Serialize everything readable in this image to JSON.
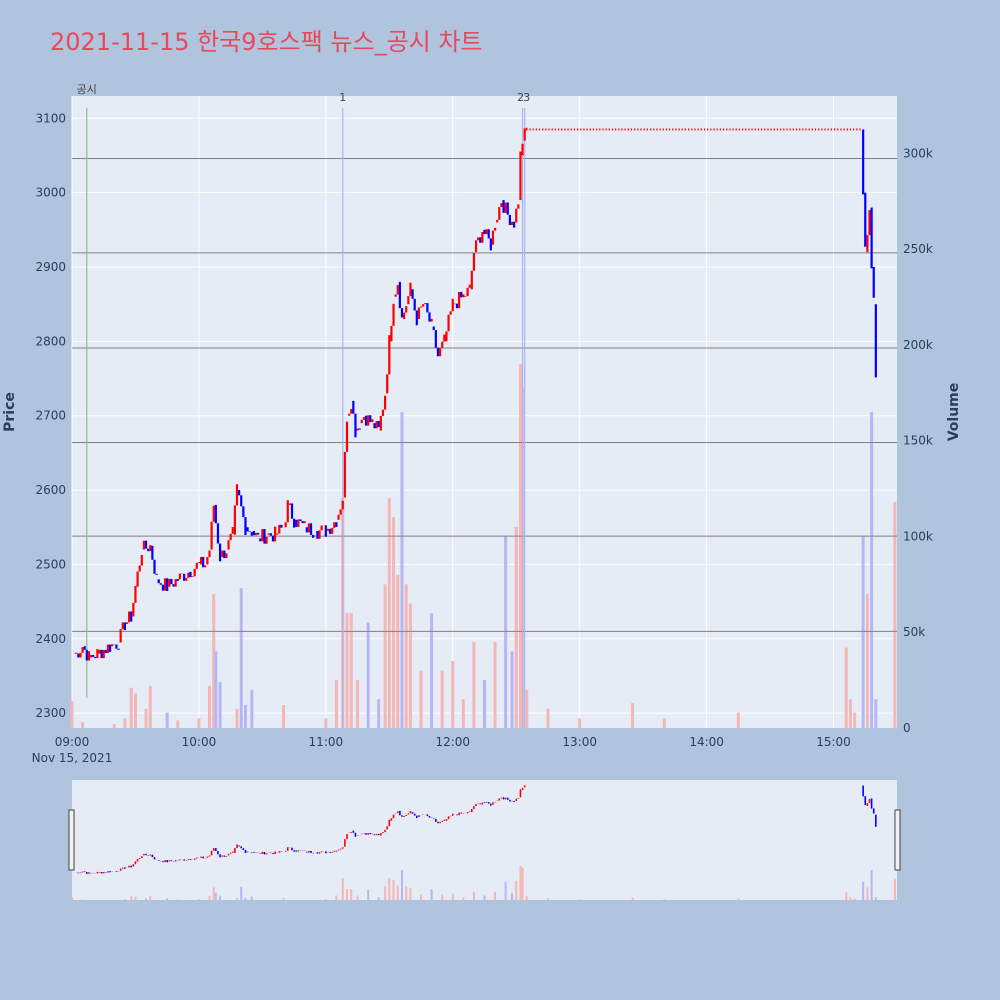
{
  "title": "2021-11-15 한국9호스팩 뉴스_공시 차트",
  "colors": {
    "page_bg": "#b0c4de",
    "plot_bg": "#e5ecf6",
    "title": "#e8495c",
    "up": "#ff0000",
    "down": "#0000ff",
    "vol_up": "#f4b6b6",
    "vol_down": "#b6b6f4",
    "disclosure_line": "#8fbc8f",
    "news_line": "#aab4f0",
    "hline": "#808080"
  },
  "chart_data": {
    "type": "candlestick",
    "xlabel": "",
    "ylabel": "Price",
    "y2label": "Volume",
    "x_range": [
      "09:00",
      "15:30"
    ],
    "ylim": [
      2280,
      3130
    ],
    "y2lim": [
      0,
      330000
    ],
    "x_ticks": [
      "09:00",
      "10:00",
      "11:00",
      "12:00",
      "13:00",
      "14:00",
      "15:00"
    ],
    "x_date_label": "Nov 15, 2021",
    "y_ticks": [
      2300,
      2400,
      2500,
      2600,
      2700,
      2800,
      2900,
      3000,
      3100
    ],
    "y2_ticks": [
      0,
      50000,
      100000,
      150000,
      200000,
      250000,
      300000
    ],
    "y2_tick_labels": [
      "0",
      "50k",
      "100k",
      "150k",
      "200k",
      "250k",
      "300k"
    ],
    "horizontal_levels": [
      2410,
      2538,
      2664,
      2791,
      2919,
      3046
    ],
    "annotations": [
      {
        "time": "09:07",
        "label": "공시",
        "kind": "disclosure"
      },
      {
        "time": "11:08",
        "label": "1",
        "kind": "news"
      },
      {
        "time": "12:33",
        "label": "2",
        "kind": "news"
      },
      {
        "time": "12:34",
        "label": "3",
        "kind": "news"
      }
    ],
    "price_path": [
      [
        "09:00",
        2380
      ],
      [
        "09:02",
        2380
      ],
      [
        "09:05",
        2390
      ],
      [
        "09:08",
        2375
      ],
      [
        "09:12",
        2380
      ],
      [
        "09:18",
        2390
      ],
      [
        "09:22",
        2395
      ],
      [
        "09:25",
        2420
      ],
      [
        "09:28",
        2430
      ],
      [
        "09:30",
        2470
      ],
      [
        "09:33",
        2520
      ],
      [
        "09:37",
        2525
      ],
      [
        "09:40",
        2480
      ],
      [
        "09:45",
        2470
      ],
      [
        "09:50",
        2480
      ],
      [
        "09:55",
        2490
      ],
      [
        "10:00",
        2500
      ],
      [
        "10:03",
        2500
      ],
      [
        "10:05",
        2520
      ],
      [
        "10:07",
        2580
      ],
      [
        "10:10",
        2510
      ],
      [
        "10:13",
        2520
      ],
      [
        "10:16",
        2540
      ],
      [
        "10:18",
        2600
      ],
      [
        "10:22",
        2550
      ],
      [
        "10:25",
        2545
      ],
      [
        "10:28",
        2535
      ],
      [
        "10:32",
        2540
      ],
      [
        "10:36",
        2540
      ],
      [
        "10:40",
        2550
      ],
      [
        "10:42",
        2580
      ],
      [
        "10:45",
        2560
      ],
      [
        "10:50",
        2550
      ],
      [
        "10:55",
        2545
      ],
      [
        "11:00",
        2545
      ],
      [
        "11:05",
        2560
      ],
      [
        "11:08",
        2590
      ],
      [
        "11:10",
        2700
      ],
      [
        "11:12",
        2720
      ],
      [
        "11:14",
        2680
      ],
      [
        "11:16",
        2690
      ],
      [
        "11:18",
        2700
      ],
      [
        "11:22",
        2690
      ],
      [
        "11:25",
        2680
      ],
      [
        "11:28",
        2730
      ],
      [
        "11:30",
        2800
      ],
      [
        "11:32",
        2860
      ],
      [
        "11:34",
        2880
      ],
      [
        "11:36",
        2830
      ],
      [
        "11:38",
        2850
      ],
      [
        "11:40",
        2870
      ],
      [
        "11:43",
        2830
      ],
      [
        "11:46",
        2850
      ],
      [
        "11:50",
        2820
      ],
      [
        "11:53",
        2780
      ],
      [
        "11:56",
        2800
      ],
      [
        "12:00",
        2850
      ],
      [
        "12:05",
        2860
      ],
      [
        "12:08",
        2870
      ],
      [
        "12:10",
        2920
      ],
      [
        "12:14",
        2950
      ],
      [
        "12:18",
        2930
      ],
      [
        "12:20",
        2960
      ],
      [
        "12:23",
        2990
      ],
      [
        "12:26",
        2970
      ],
      [
        "12:29",
        2960
      ],
      [
        "12:31",
        2990
      ],
      [
        "12:32",
        3050
      ],
      [
        "12:33",
        3070
      ],
      [
        "12:35",
        3085
      ],
      [
        "15:13",
        3085
      ],
      [
        "15:14",
        3000
      ],
      [
        "15:15",
        2920
      ],
      [
        "15:17",
        2980
      ],
      [
        "15:18",
        2900
      ],
      [
        "15:19",
        2850
      ],
      [
        "15:20",
        2750
      ]
    ],
    "volume_bars": [
      [
        "09:00",
        14000
      ],
      [
        "09:05",
        3000
      ],
      [
        "09:20",
        2000
      ],
      [
        "09:25",
        5000
      ],
      [
        "09:28",
        21000
      ],
      [
        "09:30",
        18000
      ],
      [
        "09:35",
        10000
      ],
      [
        "09:37",
        22000
      ],
      [
        "09:45",
        8000
      ],
      [
        "09:50",
        4000
      ],
      [
        "10:00",
        5000
      ],
      [
        "10:05",
        22000
      ],
      [
        "10:07",
        70000
      ],
      [
        "10:08",
        40000
      ],
      [
        "10:10",
        24000
      ],
      [
        "10:18",
        10000
      ],
      [
        "10:20",
        73000
      ],
      [
        "10:22",
        12000
      ],
      [
        "10:25",
        20000
      ],
      [
        "10:40",
        12000
      ],
      [
        "11:00",
        5000
      ],
      [
        "11:05",
        25000
      ],
      [
        "11:08",
        120000
      ],
      [
        "11:10",
        60000
      ],
      [
        "11:12",
        60000
      ],
      [
        "11:15",
        25000
      ],
      [
        "11:20",
        55000
      ],
      [
        "11:25",
        15000
      ],
      [
        "11:28",
        75000
      ],
      [
        "11:30",
        120000
      ],
      [
        "11:32",
        110000
      ],
      [
        "11:34",
        80000
      ],
      [
        "11:36",
        165000
      ],
      [
        "11:38",
        75000
      ],
      [
        "11:40",
        65000
      ],
      [
        "11:45",
        30000
      ],
      [
        "11:50",
        60000
      ],
      [
        "11:55",
        30000
      ],
      [
        "12:00",
        35000
      ],
      [
        "12:05",
        15000
      ],
      [
        "12:10",
        45000
      ],
      [
        "12:15",
        25000
      ],
      [
        "12:20",
        45000
      ],
      [
        "12:25",
        100000
      ],
      [
        "12:28",
        40000
      ],
      [
        "12:30",
        105000
      ],
      [
        "12:32",
        190000
      ],
      [
        "12:33",
        178000
      ],
      [
        "12:35",
        20000
      ],
      [
        "12:45",
        10000
      ],
      [
        "13:00",
        5000
      ],
      [
        "13:25",
        13000
      ],
      [
        "13:40",
        5000
      ],
      [
        "14:15",
        8000
      ],
      [
        "15:06",
        42000
      ],
      [
        "15:08",
        15000
      ],
      [
        "15:10",
        8000
      ],
      [
        "15:14",
        100000
      ],
      [
        "15:16",
        70000
      ],
      [
        "15:18",
        165000
      ],
      [
        "15:20",
        15000
      ],
      [
        "15:29",
        118000
      ]
    ],
    "grid": true,
    "legend": "none",
    "range_slider": true
  }
}
